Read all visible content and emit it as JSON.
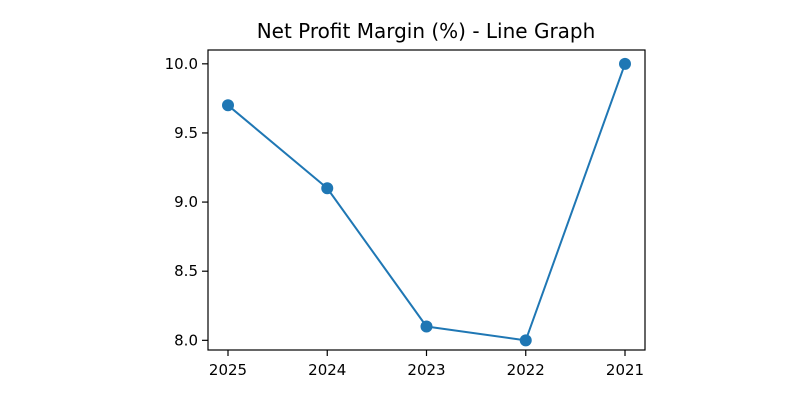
{
  "chart_data": {
    "type": "line",
    "title": "Net Profit Margin (%) - Line Graph",
    "xlabel": "",
    "ylabel": "",
    "categories": [
      "2025",
      "2024",
      "2023",
      "2022",
      "2021"
    ],
    "series": [
      {
        "values": [
          9.7,
          9.1,
          8.1,
          8.0,
          10.0
        ],
        "color": "#1f77b4",
        "marker": "circle"
      }
    ],
    "ylim": [
      7.93,
      10.1
    ],
    "yticks": [
      8.0,
      8.5,
      9.0,
      9.5,
      10.0
    ],
    "ytick_labels": [
      "8.0",
      "8.5",
      "9.0",
      "9.5",
      "10.0"
    ],
    "grid": false,
    "legend": "none"
  }
}
